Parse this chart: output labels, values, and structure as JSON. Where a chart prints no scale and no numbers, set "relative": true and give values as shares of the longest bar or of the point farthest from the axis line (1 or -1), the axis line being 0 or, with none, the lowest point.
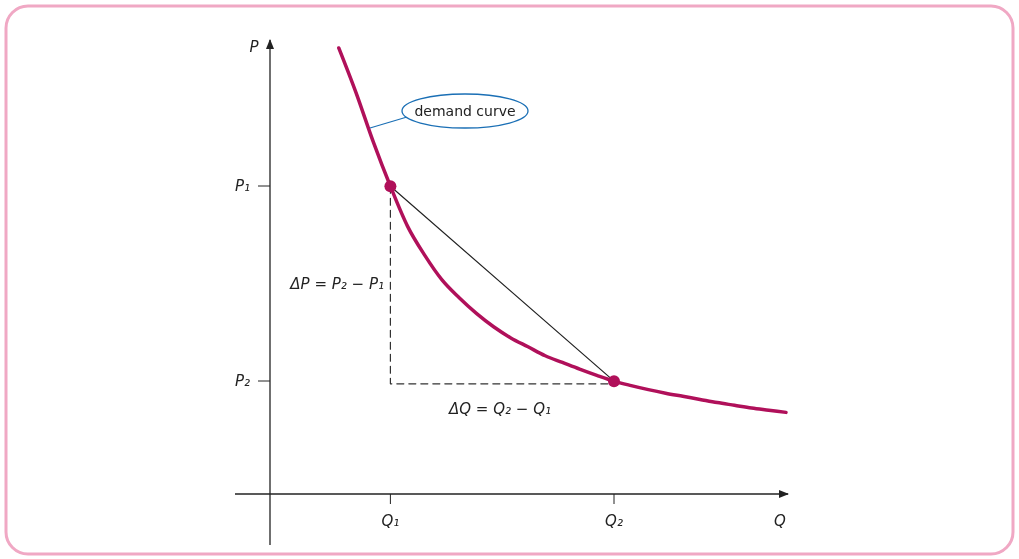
{
  "chart_data": {
    "type": "line",
    "relative": true,
    "xlabel": "Q",
    "ylabel": "P",
    "categories": [
      null,
      null,
      null,
      null,
      null,
      null,
      null,
      "Q₁",
      null,
      null,
      null,
      null,
      null,
      null,
      null,
      null,
      null,
      null,
      null,
      null,
      "Q₂",
      null,
      null,
      null,
      null,
      null,
      null,
      null,
      null,
      null,
      null
    ],
    "series": [
      {
        "color": "#b0105a",
        "values": [
          null,
          null,
          null,
          null,
          1.0,
          0.9,
          0.79,
          0.69,
          0.6,
          0.535,
          0.48,
          0.44,
          0.405,
          0.375,
          0.35,
          0.33,
          0.31,
          0.295,
          0.28,
          0.266,
          0.253,
          0.243,
          0.234,
          0.226,
          0.219,
          0.212,
          0.205,
          0.199,
          0.193,
          0.188,
          0.183
        ]
      },
      {
        "type": "line",
        "color": "#222222",
        "x": [
          "Q₁",
          "Q₂"
        ],
        "values": [
          0.69,
          0.253
        ]
      },
      {
        "type": "line",
        "color": "#333333",
        "line_style": "dashed",
        "x": [
          "Q₁",
          "Q₁",
          "Q₂"
        ],
        "values": [
          0.69,
          0.247,
          0.247
        ]
      },
      {
        "type": "scatter",
        "color": "#b0105a",
        "marker": "circle",
        "x": [
          "Q₁",
          "Q₂"
        ],
        "values": [
          0.69,
          0.253
        ]
      }
    ],
    "annotations": [
      "P₁",
      "P₂",
      "demand curve",
      "ΔP = P₂ − P₁",
      "ΔQ = Q₂ − Q₁"
    ]
  }
}
